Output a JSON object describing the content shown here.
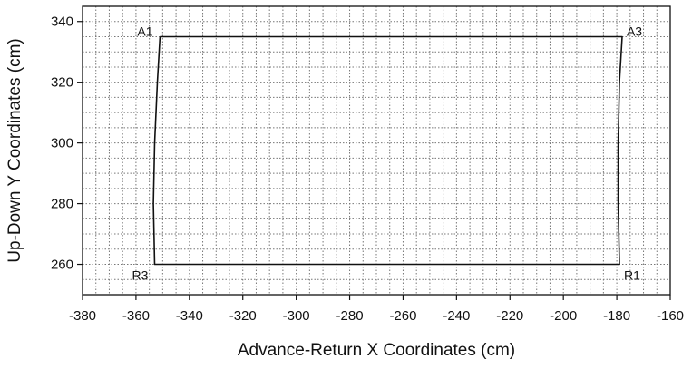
{
  "chart_data": {
    "type": "line",
    "xlabel": "Advance-Return X Coordinates (cm)",
    "ylabel": "Up-Down Y Coordinates (cm)",
    "xlim": [
      -380,
      -160
    ],
    "ylim": [
      250,
      345
    ],
    "x_ticks": [
      -380,
      -360,
      -340,
      -320,
      -300,
      -280,
      -260,
      -240,
      -220,
      -200,
      -180,
      -160
    ],
    "y_ticks": [
      260,
      280,
      300,
      320,
      340
    ],
    "x_minor_step": 5,
    "y_minor_step": 5,
    "grid": true,
    "series": [
      {
        "x": [
          -351,
          -352,
          -353,
          -353.5,
          -353,
          -300,
          -250,
          -200,
          -179,
          -179.5,
          -179.5,
          -179,
          -178,
          -200,
          -250,
          -300,
          -351
        ],
        "y": [
          335,
          320,
          300,
          280,
          260,
          260,
          260,
          260,
          260,
          280,
          300,
          320,
          335,
          335,
          335,
          335,
          335
        ]
      }
    ],
    "annotations": [
      {
        "text": "A1",
        "x": -351,
        "y": 335
      },
      {
        "text": "A3",
        "x": -178,
        "y": 335
      },
      {
        "text": "R3",
        "x": -353,
        "y": 260
      },
      {
        "text": "R1",
        "x": -179,
        "y": 260
      }
    ]
  }
}
